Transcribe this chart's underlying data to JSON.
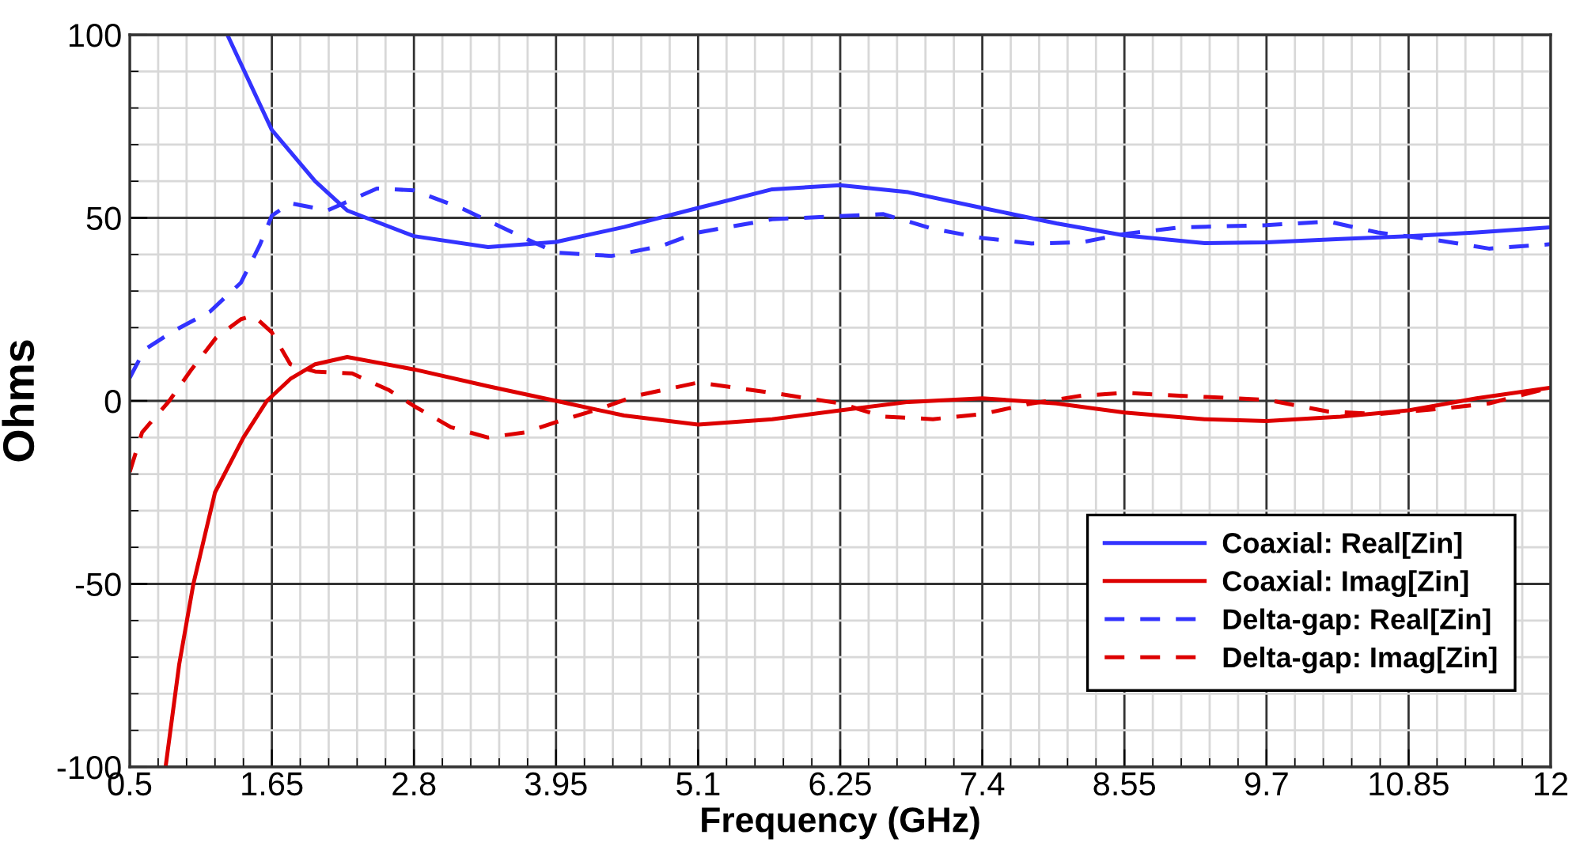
{
  "chart_data": {
    "type": "line",
    "xlabel": "Frequency (GHz)",
    "ylabel": "Ohms",
    "xlim": [
      0.5,
      12
    ],
    "ylim": [
      -100,
      100
    ],
    "xticks": [
      0.5,
      1.65,
      2.8,
      3.95,
      5.1,
      6.25,
      7.4,
      8.55,
      9.7,
      10.85,
      12
    ],
    "yticks": [
      -100,
      -50,
      0,
      50,
      100
    ],
    "grid": true,
    "legend": "bottom right",
    "marker": "none",
    "series": [
      {
        "name": "Coaxial: Real[Zin]",
        "color": "#3333ff",
        "line_style": "solid",
        "x": [
          1.29,
          1.65,
          2.0,
          2.26,
          2.8,
          3.4,
          3.95,
          4.5,
          5.1,
          5.7,
          6.25,
          6.8,
          7.4,
          8.0,
          8.55,
          9.2,
          9.7,
          10.3,
          10.85,
          11.4,
          12
        ],
        "values": [
          100,
          74,
          60,
          52,
          45,
          42,
          43.4,
          47.5,
          52.7,
          57.8,
          58.9,
          57,
          52.7,
          48.5,
          45.2,
          43.1,
          43.3,
          44.2,
          45,
          46,
          47.4
        ]
      },
      {
        "name": "Coaxial: Imag[Zin]",
        "color": "#dd0000",
        "line_style": "solid",
        "x": [
          0.79,
          0.9,
          1.015,
          1.19,
          1.42,
          1.61,
          1.8,
          2.0,
          2.26,
          2.8,
          3.4,
          3.95,
          4.5,
          5.1,
          5.7,
          6.25,
          6.8,
          7.4,
          8.0,
          8.55,
          9.2,
          9.7,
          10.3,
          10.85,
          11.4,
          12
        ],
        "values": [
          -100,
          -72,
          -50,
          -25,
          -10,
          0,
          6,
          10,
          12,
          8.6,
          4,
          0,
          -4,
          -6.5,
          -5,
          -2.6,
          -0.3,
          0.7,
          -0.7,
          -3.2,
          -5,
          -5.5,
          -4.3,
          -2.6,
          0.7,
          3.6
        ]
      },
      {
        "name": "Delta-gap: Real[Zin]",
        "color": "#3333ff",
        "line_style": "dashed",
        "x": [
          0.5,
          0.62,
          0.85,
          1.15,
          1.4,
          1.55,
          1.65,
          1.8,
          2.1,
          2.5,
          2.8,
          3.2,
          3.6,
          3.95,
          4.4,
          4.8,
          5.1,
          5.7,
          6.25,
          6.6,
          7.0,
          7.4,
          7.8,
          8.2,
          8.55,
          9.0,
          9.7,
          10.2,
          10.6,
          11.1,
          11.5,
          12
        ],
        "values": [
          6.3,
          14,
          19,
          24.4,
          32.3,
          42.4,
          50.6,
          54,
          52,
          58,
          57.5,
          52.4,
          46,
          40.5,
          39.6,
          42.3,
          46,
          49.6,
          50.5,
          51,
          47,
          44.5,
          43,
          43.3,
          45.6,
          47.4,
          48,
          49,
          46,
          43.8,
          41.6,
          42.8
        ]
      },
      {
        "name": "Delta-gap: Imag[Zin]",
        "color": "#dd0000",
        "line_style": "dashed",
        "x": [
          0.5,
          0.6,
          0.82,
          1.0,
          1.2,
          1.4,
          1.5,
          1.65,
          1.8,
          2.0,
          2.3,
          2.6,
          2.8,
          3.1,
          3.4,
          3.7,
          3.95,
          4.3,
          4.6,
          5.1,
          5.7,
          6.25,
          6.6,
          7.0,
          7.4,
          7.8,
          8.2,
          8.55,
          9.0,
          9.7,
          10.2,
          10.6,
          11.1,
          11.5,
          12
        ],
        "values": [
          -19.4,
          -8.6,
          0,
          8.6,
          17.3,
          22.3,
          23.3,
          18.7,
          10,
          8,
          7.5,
          2.9,
          -1.4,
          -7.2,
          -10,
          -8.6,
          -5.8,
          -2.2,
          1.4,
          5,
          2.2,
          -0.7,
          -4.3,
          -5,
          -3.6,
          -0.7,
          1.4,
          2.2,
          1.4,
          0.3,
          -2.9,
          -3.6,
          -2.2,
          -0.7,
          3.6
        ]
      }
    ]
  }
}
